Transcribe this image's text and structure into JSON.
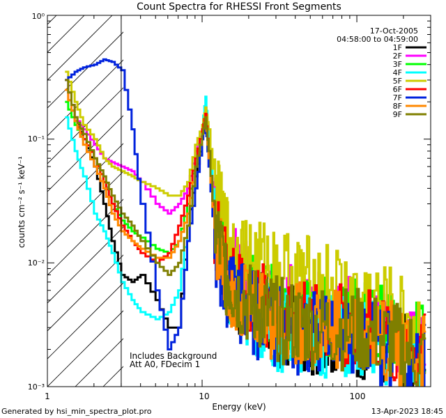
{
  "chart_data": {
    "type": "line",
    "title": "Count Spectra for RHESSI Front Segments",
    "xlabel": "Energy (keV)",
    "ylabel": "counts cm⁻² s⁻¹ keV⁻¹",
    "xscale": "log",
    "yscale": "log",
    "xlim": [
      1,
      300
    ],
    "ylim": [
      0.001,
      1
    ],
    "x_tick_labels": [
      "1",
      "10",
      "100"
    ],
    "y_tick_labels": [
      "10⁻³",
      "10⁻²",
      "10⁻¹",
      "10⁰"
    ],
    "date": "17-Oct-2005",
    "time_range": "04:58:00 to 04:59:00",
    "annotation_line1": "Includes Background",
    "annotation_line2": "Att A0, FDecim 1",
    "footer_left": "Generated by hsi_min_spectra_plot.pro",
    "footer_right": "13-Apr-2023 18:45",
    "excluded_region_keV": [
      1,
      3
    ],
    "series": [
      {
        "name": "1F",
        "color": "#000000",
        "points": [
          [
            1.3,
            0.3
          ],
          [
            1.5,
            0.15
          ],
          [
            1.7,
            0.1
          ],
          [
            2.0,
            0.06
          ],
          [
            2.3,
            0.03
          ],
          [
            2.6,
            0.015
          ],
          [
            3.0,
            0.008
          ],
          [
            3.5,
            0.007
          ],
          [
            4,
            0.008
          ],
          [
            5,
            0.005
          ],
          [
            6,
            0.003
          ],
          [
            7,
            0.003
          ],
          [
            8,
            0.02
          ],
          [
            9,
            0.05
          ],
          [
            10,
            0.1
          ],
          [
            10.5,
            0.15
          ],
          [
            11,
            0.08
          ],
          [
            12,
            0.02
          ],
          [
            14,
            0.008
          ],
          [
            16,
            0.006
          ],
          [
            20,
            0.005
          ],
          [
            25,
            0.004
          ],
          [
            30,
            0.003
          ],
          [
            40,
            0.003
          ],
          [
            50,
            0.0028
          ],
          [
            70,
            0.0028
          ],
          [
            100,
            0.0026
          ],
          [
            150,
            0.0022
          ],
          [
            200,
            0.0019
          ],
          [
            280,
            0.0016
          ]
        ]
      },
      {
        "name": "2F",
        "color": "#ff00ff",
        "points": [
          [
            1.3,
            0.3
          ],
          [
            1.5,
            0.15
          ],
          [
            1.7,
            0.12
          ],
          [
            2.0,
            0.09
          ],
          [
            2.3,
            0.07
          ],
          [
            2.6,
            0.065
          ],
          [
            3.0,
            0.06
          ],
          [
            3.5,
            0.055
          ],
          [
            4,
            0.045
          ],
          [
            5,
            0.03
          ],
          [
            6,
            0.025
          ],
          [
            7,
            0.03
          ],
          [
            8,
            0.04
          ],
          [
            9,
            0.08
          ],
          [
            10,
            0.12
          ],
          [
            10.5,
            0.18
          ],
          [
            11,
            0.1
          ],
          [
            12,
            0.03
          ],
          [
            14,
            0.012
          ],
          [
            16,
            0.009
          ],
          [
            20,
            0.007
          ],
          [
            25,
            0.006
          ],
          [
            30,
            0.005
          ],
          [
            40,
            0.0045
          ],
          [
            50,
            0.0042
          ],
          [
            70,
            0.004
          ],
          [
            100,
            0.0036
          ],
          [
            150,
            0.003
          ],
          [
            200,
            0.0025
          ],
          [
            280,
            0.002
          ]
        ]
      },
      {
        "name": "3F",
        "color": "#00ff00",
        "points": [
          [
            1.3,
            0.2
          ],
          [
            1.5,
            0.13
          ],
          [
            1.7,
            0.1
          ],
          [
            2.0,
            0.07
          ],
          [
            2.3,
            0.045
          ],
          [
            2.6,
            0.03
          ],
          [
            3.0,
            0.022
          ],
          [
            3.5,
            0.018
          ],
          [
            4,
            0.016
          ],
          [
            5,
            0.013
          ],
          [
            6,
            0.012
          ],
          [
            7,
            0.015
          ],
          [
            8,
            0.03
          ],
          [
            9,
            0.07
          ],
          [
            10,
            0.12
          ],
          [
            10.5,
            0.17
          ],
          [
            11,
            0.09
          ],
          [
            12,
            0.025
          ],
          [
            14,
            0.01
          ],
          [
            16,
            0.008
          ],
          [
            20,
            0.006
          ],
          [
            25,
            0.005
          ],
          [
            30,
            0.0045
          ],
          [
            40,
            0.004
          ],
          [
            50,
            0.0038
          ],
          [
            70,
            0.0036
          ],
          [
            100,
            0.0034
          ],
          [
            150,
            0.0029
          ],
          [
            200,
            0.0024
          ],
          [
            280,
            0.002
          ]
        ]
      },
      {
        "name": "4F",
        "color": "#00ffff",
        "points": [
          [
            1.3,
            0.15
          ],
          [
            1.5,
            0.08
          ],
          [
            1.7,
            0.05
          ],
          [
            2.0,
            0.025
          ],
          [
            2.3,
            0.018
          ],
          [
            2.6,
            0.012
          ],
          [
            3.0,
            0.007
          ],
          [
            3.5,
            0.005
          ],
          [
            4,
            0.004
          ],
          [
            5,
            0.0035
          ],
          [
            6,
            0.004
          ],
          [
            7,
            0.006
          ],
          [
            8,
            0.02
          ],
          [
            9,
            0.06
          ],
          [
            10,
            0.13
          ],
          [
            10.5,
            0.22
          ],
          [
            11,
            0.1
          ],
          [
            12,
            0.025
          ],
          [
            14,
            0.009
          ],
          [
            16,
            0.006
          ],
          [
            20,
            0.0045
          ],
          [
            25,
            0.0035
          ],
          [
            30,
            0.003
          ],
          [
            40,
            0.0028
          ],
          [
            50,
            0.0027
          ],
          [
            70,
            0.0026
          ],
          [
            100,
            0.0025
          ],
          [
            150,
            0.0021
          ],
          [
            200,
            0.0018
          ],
          [
            280,
            0.0015
          ]
        ]
      },
      {
        "name": "5F",
        "color": "#cccc00",
        "points": [
          [
            1.3,
            0.35
          ],
          [
            1.5,
            0.2
          ],
          [
            1.7,
            0.13
          ],
          [
            2.0,
            0.1
          ],
          [
            2.3,
            0.07
          ],
          [
            2.6,
            0.06
          ],
          [
            3.0,
            0.055
          ],
          [
            3.5,
            0.05
          ],
          [
            4,
            0.045
          ],
          [
            5,
            0.04
          ],
          [
            6,
            0.035
          ],
          [
            7,
            0.035
          ],
          [
            8,
            0.045
          ],
          [
            9,
            0.09
          ],
          [
            10,
            0.13
          ],
          [
            10.5,
            0.18
          ],
          [
            11,
            0.12
          ],
          [
            12,
            0.04
          ],
          [
            14,
            0.018
          ],
          [
            16,
            0.013
          ],
          [
            20,
            0.011
          ],
          [
            25,
            0.01
          ],
          [
            30,
            0.009
          ],
          [
            40,
            0.008
          ],
          [
            50,
            0.0075
          ],
          [
            70,
            0.0065
          ],
          [
            100,
            0.0055
          ],
          [
            150,
            0.0045
          ],
          [
            200,
            0.0035
          ],
          [
            280,
            0.0025
          ]
        ]
      },
      {
        "name": "6F",
        "color": "#ff0000",
        "points": [
          [
            1.3,
            0.25
          ],
          [
            1.5,
            0.14
          ],
          [
            1.7,
            0.1
          ],
          [
            2.0,
            0.07
          ],
          [
            2.3,
            0.045
          ],
          [
            2.6,
            0.03
          ],
          [
            3.0,
            0.02
          ],
          [
            3.5,
            0.015
          ],
          [
            4,
            0.012
          ],
          [
            5,
            0.01
          ],
          [
            6,
            0.012
          ],
          [
            7,
            0.02
          ],
          [
            8,
            0.035
          ],
          [
            9,
            0.07
          ],
          [
            10,
            0.12
          ],
          [
            10.5,
            0.16
          ],
          [
            11,
            0.08
          ],
          [
            12,
            0.02
          ],
          [
            14,
            0.009
          ],
          [
            16,
            0.007
          ],
          [
            20,
            0.005
          ],
          [
            25,
            0.0045
          ],
          [
            30,
            0.004
          ],
          [
            40,
            0.0035
          ],
          [
            50,
            0.0033
          ],
          [
            70,
            0.0031
          ],
          [
            100,
            0.0029
          ],
          [
            150,
            0.0025
          ],
          [
            200,
            0.0021
          ],
          [
            280,
            0.0017
          ]
        ]
      },
      {
        "name": "7F",
        "color": "#0022dd",
        "points": [
          [
            1.3,
            0.3
          ],
          [
            1.5,
            0.35
          ],
          [
            1.7,
            0.38
          ],
          [
            2.0,
            0.4
          ],
          [
            2.3,
            0.44
          ],
          [
            2.6,
            0.42
          ],
          [
            3.0,
            0.36
          ],
          [
            3.5,
            0.12
          ],
          [
            4,
            0.03
          ],
          [
            5,
            0.006
          ],
          [
            6,
            0.002
          ],
          [
            7,
            0.003
          ],
          [
            8,
            0.015
          ],
          [
            9,
            0.04
          ],
          [
            10,
            0.1
          ],
          [
            10.5,
            0.14
          ],
          [
            11,
            0.06
          ],
          [
            12,
            0.015
          ],
          [
            14,
            0.007
          ],
          [
            16,
            0.005
          ],
          [
            20,
            0.004
          ],
          [
            25,
            0.0035
          ],
          [
            30,
            0.003
          ],
          [
            40,
            0.0028
          ],
          [
            50,
            0.0027
          ],
          [
            70,
            0.0027
          ],
          [
            100,
            0.0026
          ],
          [
            150,
            0.0022
          ],
          [
            200,
            0.0019
          ],
          [
            280,
            0.0016
          ]
        ]
      },
      {
        "name": "8F",
        "color": "#ff8800",
        "points": [
          [
            1.3,
            0.25
          ],
          [
            1.5,
            0.14
          ],
          [
            1.7,
            0.09
          ],
          [
            2.0,
            0.06
          ],
          [
            2.3,
            0.04
          ],
          [
            2.6,
            0.025
          ],
          [
            3.0,
            0.018
          ],
          [
            3.5,
            0.015
          ],
          [
            4,
            0.013
          ],
          [
            5,
            0.011
          ],
          [
            6,
            0.011
          ],
          [
            7,
            0.015
          ],
          [
            8,
            0.025
          ],
          [
            9,
            0.06
          ],
          [
            10,
            0.11
          ],
          [
            10.5,
            0.15
          ],
          [
            11,
            0.07
          ],
          [
            12,
            0.018
          ],
          [
            14,
            0.008
          ],
          [
            16,
            0.006
          ],
          [
            20,
            0.0045
          ],
          [
            25,
            0.004
          ],
          [
            30,
            0.0035
          ],
          [
            40,
            0.0032
          ],
          [
            50,
            0.003
          ],
          [
            70,
            0.003
          ],
          [
            100,
            0.0028
          ],
          [
            150,
            0.0024
          ],
          [
            200,
            0.002
          ],
          [
            280,
            0.0016
          ]
        ]
      },
      {
        "name": "9F",
        "color": "#7f7f00",
        "points": [
          [
            1.3,
            0.3
          ],
          [
            1.5,
            0.15
          ],
          [
            1.7,
            0.11
          ],
          [
            2.0,
            0.07
          ],
          [
            2.3,
            0.05
          ],
          [
            2.6,
            0.035
          ],
          [
            3.0,
            0.025
          ],
          [
            3.5,
            0.02
          ],
          [
            4,
            0.015
          ],
          [
            5,
            0.01
          ],
          [
            6,
            0.008
          ],
          [
            7,
            0.01
          ],
          [
            8,
            0.02
          ],
          [
            9,
            0.06
          ],
          [
            10,
            0.11
          ],
          [
            10.5,
            0.15
          ],
          [
            11,
            0.08
          ],
          [
            12,
            0.02
          ],
          [
            14,
            0.009
          ],
          [
            16,
            0.006
          ],
          [
            20,
            0.0045
          ],
          [
            25,
            0.004
          ],
          [
            30,
            0.0035
          ],
          [
            40,
            0.0032
          ],
          [
            50,
            0.003
          ],
          [
            70,
            0.003
          ],
          [
            100,
            0.0028
          ],
          [
            150,
            0.0024
          ],
          [
            200,
            0.002
          ],
          [
            280,
            0.0016
          ]
        ]
      }
    ]
  }
}
